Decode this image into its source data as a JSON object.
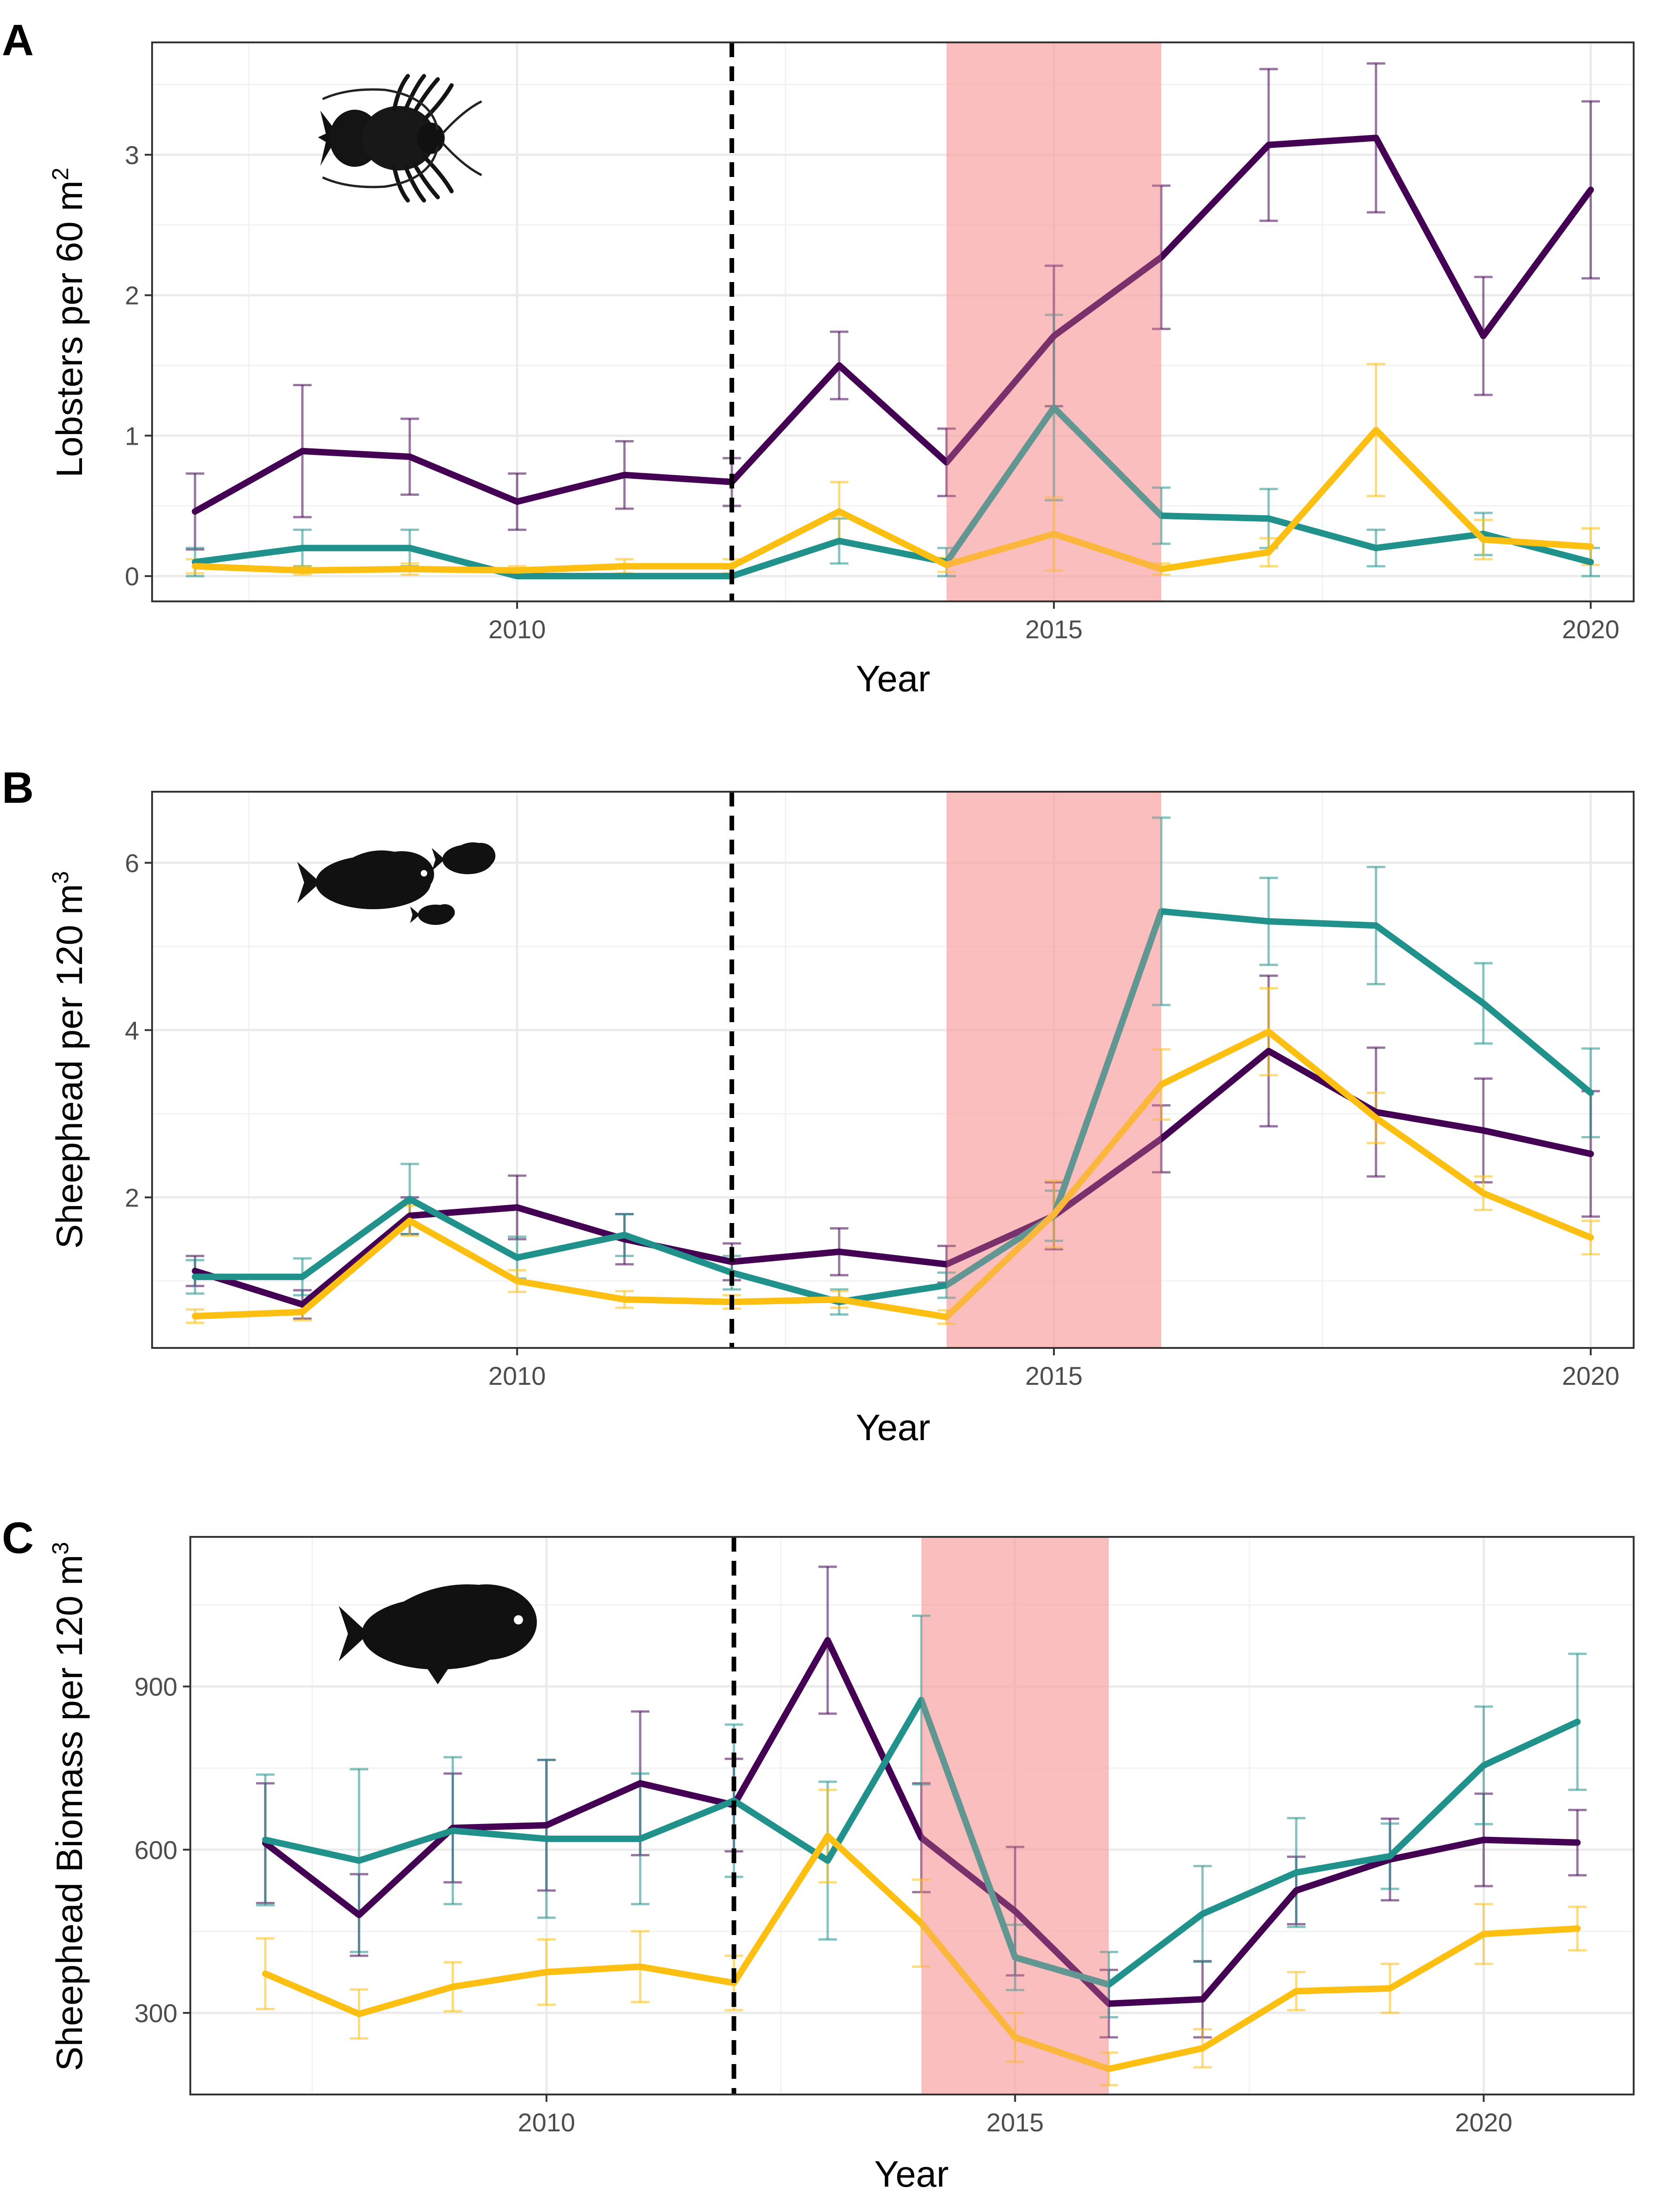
{
  "colors": {
    "purple": "#440154",
    "teal": "#21918c",
    "yellow": "#fdbf11",
    "heatwave": "#f8a1a1"
  },
  "chart_data": [
    {
      "panel": "A",
      "type": "line",
      "xlabel": "Year",
      "ylabel_main": "Lobsters per 60 m",
      "ylabel_sup": "2",
      "xlim": [
        2006.6,
        2020.4
      ],
      "ylim": [
        -0.18,
        3.8
      ],
      "xticks": [
        2010,
        2015,
        2020
      ],
      "yticks": [
        0,
        1,
        2,
        3
      ],
      "vline_x": 2012,
      "shade_range": [
        2014,
        2016
      ],
      "silhouette": "lobster-icon",
      "grid": true,
      "series": [
        {
          "color_key": "purple",
          "x": [
            2007,
            2008,
            2009,
            2010,
            2011,
            2012,
            2013,
            2014,
            2015,
            2016,
            2017,
            2018,
            2019,
            2020
          ],
          "values": [
            0.46,
            0.89,
            0.85,
            0.53,
            0.72,
            0.67,
            1.5,
            0.81,
            1.71,
            2.27,
            3.07,
            3.12,
            1.71,
            2.75
          ],
          "err": [
            0.27,
            0.47,
            0.27,
            0.2,
            0.24,
            0.17,
            0.24,
            0.24,
            0.5,
            0.51,
            0.54,
            0.53,
            0.42,
            0.63
          ]
        },
        {
          "color_key": "teal",
          "x": [
            2007,
            2008,
            2009,
            2010,
            2011,
            2012,
            2013,
            2014,
            2015,
            2016,
            2017,
            2018,
            2019,
            2020
          ],
          "values": [
            0.1,
            0.2,
            0.2,
            0.0,
            0.0,
            0.0,
            0.25,
            0.1,
            1.2,
            0.43,
            0.41,
            0.2,
            0.3,
            0.1
          ],
          "err": [
            0.1,
            0.13,
            0.13,
            0.0,
            0.0,
            0.0,
            0.16,
            0.1,
            0.66,
            0.2,
            0.21,
            0.13,
            0.15,
            0.1
          ]
        },
        {
          "color_key": "yellow",
          "x": [
            2007,
            2008,
            2009,
            2010,
            2011,
            2012,
            2013,
            2014,
            2015,
            2016,
            2017,
            2018,
            2019,
            2020
          ],
          "values": [
            0.07,
            0.04,
            0.05,
            0.04,
            0.07,
            0.07,
            0.46,
            0.08,
            0.3,
            0.05,
            0.17,
            1.04,
            0.26,
            0.21
          ],
          "err": [
            0.05,
            0.03,
            0.04,
            0.03,
            0.05,
            0.05,
            0.21,
            0.05,
            0.26,
            0.04,
            0.1,
            0.47,
            0.14,
            0.13
          ]
        }
      ]
    },
    {
      "panel": "B",
      "type": "line",
      "xlabel": "Year",
      "ylabel_main": "Sheephead per 120 m",
      "ylabel_sup": "3",
      "xlim": [
        2006.6,
        2020.4
      ],
      "ylim": [
        0.2,
        6.85
      ],
      "xticks": [
        2010,
        2015,
        2020
      ],
      "yticks": [
        2,
        4,
        6
      ],
      "vline_x": 2012,
      "shade_range": [
        2014,
        2016
      ],
      "silhouette": "sheephead-group-icon",
      "grid": true,
      "series": [
        {
          "color_key": "purple",
          "x": [
            2007,
            2008,
            2009,
            2010,
            2011,
            2012,
            2013,
            2014,
            2015,
            2016,
            2017,
            2018,
            2019,
            2020
          ],
          "values": [
            1.12,
            0.72,
            1.78,
            1.88,
            1.5,
            1.23,
            1.35,
            1.2,
            1.78,
            2.7,
            3.75,
            3.02,
            2.8,
            2.52
          ],
          "err": [
            0.18,
            0.17,
            0.22,
            0.38,
            0.3,
            0.22,
            0.28,
            0.22,
            0.4,
            0.4,
            0.9,
            0.77,
            0.62,
            0.75
          ]
        },
        {
          "color_key": "teal",
          "x": [
            2007,
            2008,
            2009,
            2010,
            2011,
            2012,
            2013,
            2014,
            2015,
            2016,
            2017,
            2018,
            2019,
            2020
          ],
          "values": [
            1.05,
            1.05,
            1.98,
            1.28,
            1.55,
            1.1,
            0.75,
            0.95,
            1.78,
            5.42,
            5.3,
            5.25,
            4.32,
            3.25
          ],
          "err": [
            0.2,
            0.22,
            0.42,
            0.25,
            0.25,
            0.2,
            0.15,
            0.15,
            0.3,
            1.12,
            0.52,
            0.7,
            0.48,
            0.53
          ]
        },
        {
          "color_key": "yellow",
          "x": [
            2007,
            2008,
            2009,
            2010,
            2011,
            2012,
            2013,
            2014,
            2015,
            2016,
            2017,
            2018,
            2019,
            2020
          ],
          "values": [
            0.58,
            0.63,
            1.72,
            1.0,
            0.78,
            0.75,
            0.78,
            0.57,
            1.8,
            3.35,
            3.98,
            2.95,
            2.05,
            1.52
          ],
          "err": [
            0.08,
            0.1,
            0.18,
            0.13,
            0.1,
            0.08,
            0.1,
            0.08,
            0.4,
            0.42,
            0.52,
            0.3,
            0.2,
            0.2
          ]
        }
      ]
    },
    {
      "panel": "C",
      "type": "line",
      "xlabel": "Year",
      "ylabel_main": "Sheephead Biomass per 120 m",
      "ylabel_sup": "3",
      "xlim": [
        2006.2,
        2021.6
      ],
      "ylim": [
        150,
        1175
      ],
      "xticks": [
        2010,
        2015,
        2020
      ],
      "yticks": [
        300,
        600,
        900
      ],
      "vline_x": 2012,
      "shade_range": [
        2014,
        2016
      ],
      "silhouette": "sheephead-icon",
      "grid": true,
      "series": [
        {
          "color_key": "purple",
          "x": [
            2007,
            2008,
            2009,
            2010,
            2011,
            2012,
            2013,
            2014,
            2015,
            2016,
            2017,
            2018,
            2019,
            2020,
            2021
          ],
          "values": [
            612,
            480,
            640,
            645,
            722,
            682,
            985,
            622,
            487,
            317,
            325,
            525,
            582,
            618,
            613
          ],
          "err": [
            110,
            75,
            100,
            120,
            132,
            85,
            135,
            100,
            118,
            62,
            70,
            62,
            75,
            85,
            60
          ]
        },
        {
          "color_key": "teal",
          "x": [
            2007,
            2008,
            2009,
            2010,
            2011,
            2012,
            2013,
            2014,
            2015,
            2016,
            2017,
            2018,
            2019,
            2020,
            2021
          ],
          "values": [
            618,
            580,
            635,
            620,
            620,
            690,
            580,
            875,
            402,
            352,
            482,
            558,
            588,
            755,
            835
          ],
          "err": [
            120,
            168,
            135,
            145,
            120,
            140,
            145,
            155,
            60,
            60,
            88,
            100,
            60,
            108,
            125
          ]
        },
        {
          "color_key": "yellow",
          "x": [
            2007,
            2008,
            2009,
            2010,
            2011,
            2012,
            2013,
            2014,
            2015,
            2016,
            2017,
            2018,
            2019,
            2020,
            2021
          ],
          "values": [
            372,
            298,
            348,
            375,
            385,
            355,
            625,
            465,
            255,
            197,
            235,
            340,
            345,
            445,
            455
          ],
          "err": [
            65,
            45,
            45,
            60,
            65,
            50,
            85,
            80,
            45,
            30,
            35,
            35,
            45,
            55,
            40
          ]
        }
      ]
    }
  ]
}
